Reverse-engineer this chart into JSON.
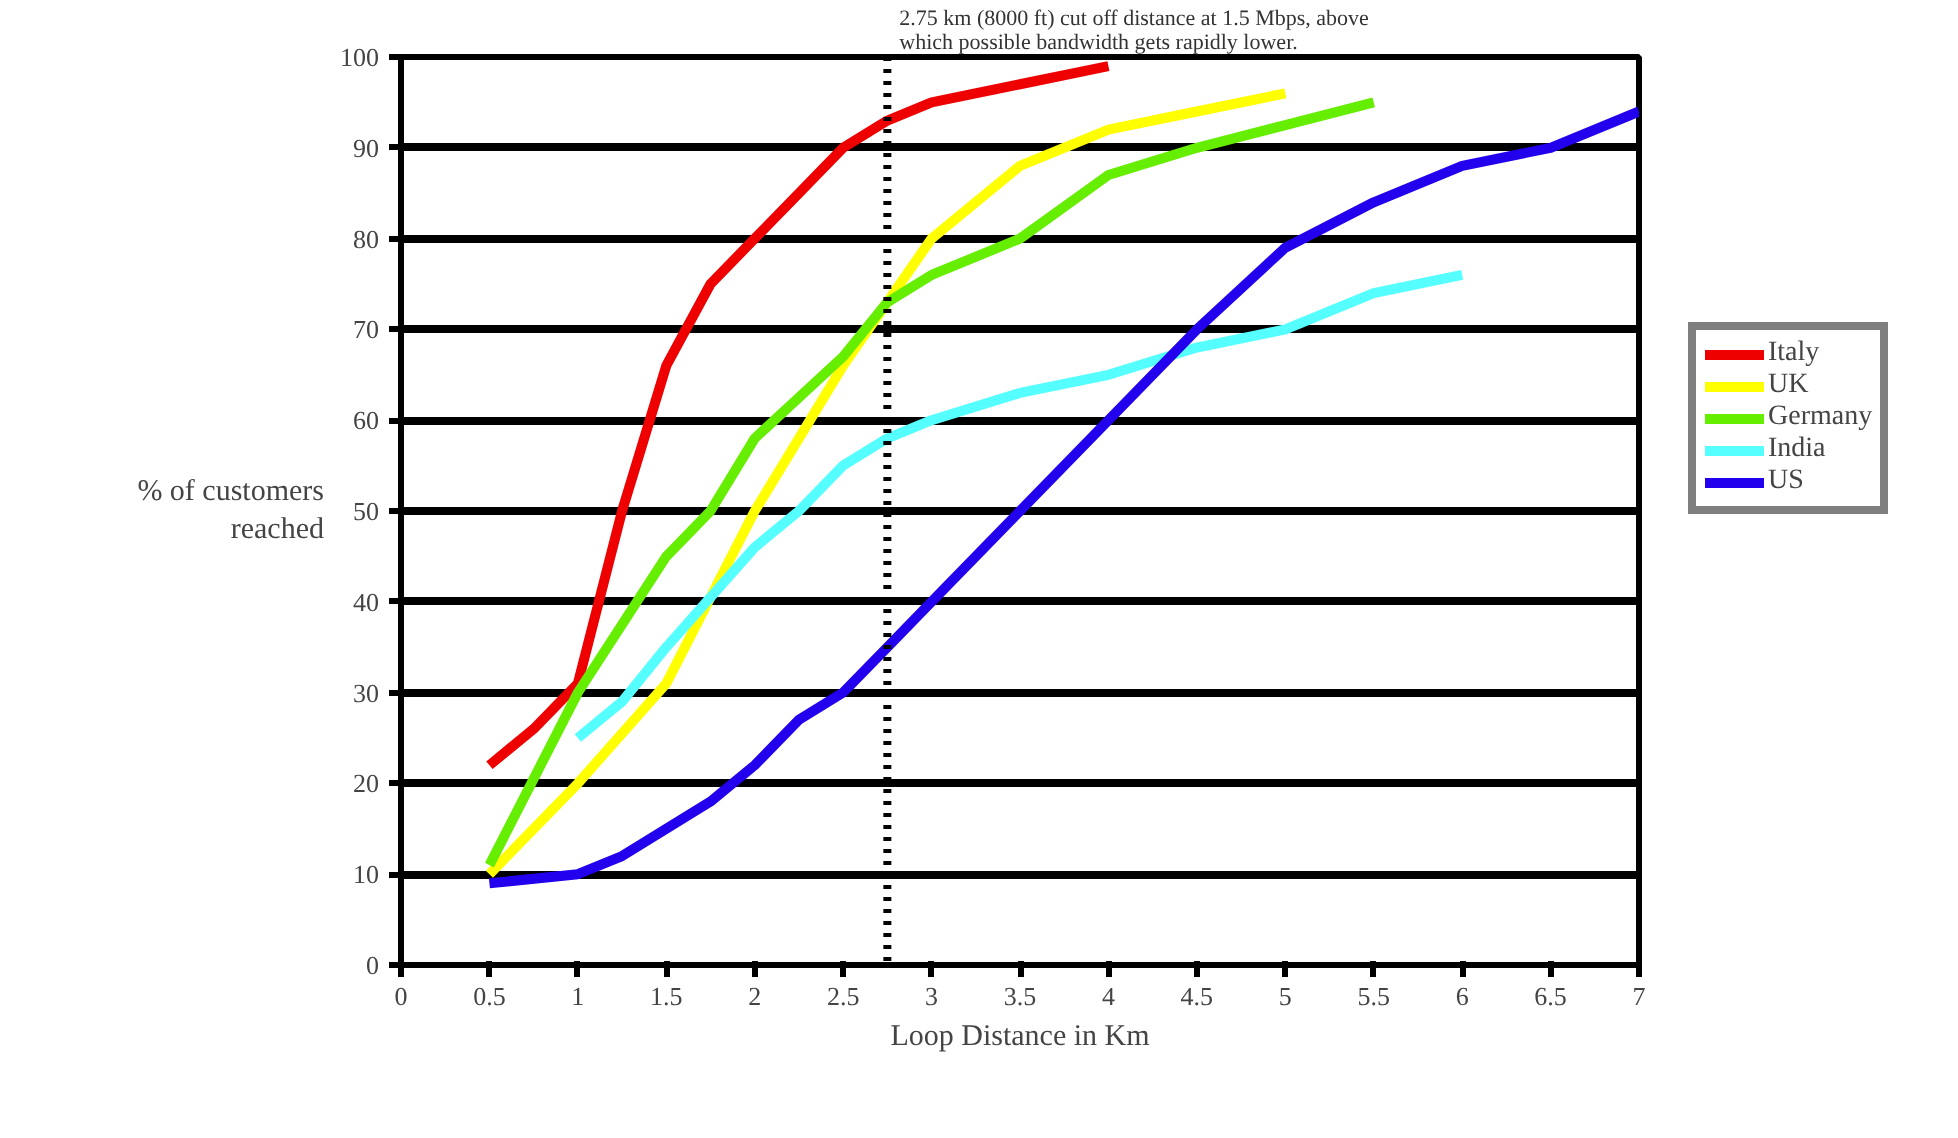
{
  "chart_data": {
    "type": "line",
    "xlabel": "Loop Distance in Km",
    "ylabel": "% of customers reached",
    "xlim": [
      0,
      7
    ],
    "ylim": [
      0,
      100
    ],
    "xticks": [
      0,
      0.5,
      1,
      1.5,
      2,
      2.5,
      3,
      3.5,
      4,
      4.5,
      5,
      5.5,
      6,
      6.5,
      7
    ],
    "yticks": [
      0,
      10,
      20,
      30,
      40,
      50,
      60,
      70,
      80,
      90,
      100
    ],
    "grid": "y",
    "legend": "right",
    "line_style": "solid",
    "marker": "none",
    "ref_lines": [
      {
        "axis": "x",
        "value": 2.75,
        "label": "2.75 km (8000 ft) cut off distance at 1.5 Mbps, above which possible bandwidth gets rapidly lower.",
        "color": "#000000",
        "line_style": "dotted"
      }
    ],
    "series": [
      {
        "name": "Italy",
        "color": "#ee0000",
        "x": [
          0.5,
          0.75,
          1,
          1.25,
          1.5,
          1.75,
          2,
          2.25,
          2.5,
          2.75,
          3,
          3.5,
          4
        ],
        "values": [
          22,
          26,
          31,
          50,
          66,
          75,
          80,
          85,
          90,
          93,
          95,
          97,
          99
        ]
      },
      {
        "name": "UK",
        "color": "#ffff00",
        "x": [
          0.5,
          1,
          1.5,
          2,
          2.5,
          2.75,
          3,
          3.5,
          4,
          4.5,
          5
        ],
        "values": [
          10,
          20,
          31,
          50,
          66,
          73,
          80,
          88,
          92,
          94,
          96
        ]
      },
      {
        "name": "Germany",
        "color": "#66ee00",
        "x": [
          0.5,
          1,
          1.5,
          1.75,
          2,
          2.5,
          2.75,
          3,
          3.5,
          4,
          4.5,
          5,
          5.5
        ],
        "values": [
          11,
          30,
          45,
          50,
          58,
          67,
          73,
          76,
          80,
          87,
          90,
          92.5,
          95
        ]
      },
      {
        "name": "India",
        "color": "#55ffff",
        "x": [
          1,
          1.25,
          1.5,
          2,
          2.25,
          2.5,
          2.75,
          3,
          3.5,
          4,
          4.5,
          5,
          5.5,
          6
        ],
        "values": [
          25,
          29,
          35,
          46,
          50,
          55,
          58,
          60,
          63,
          65,
          68,
          70,
          74,
          76
        ]
      },
      {
        "name": "US",
        "color": "#2200ee",
        "x": [
          0.5,
          1,
          1.25,
          1.5,
          1.75,
          2,
          2.25,
          2.5,
          2.75,
          3,
          3.5,
          4,
          4.5,
          5,
          5.5,
          6,
          6.5,
          7
        ],
        "values": [
          9,
          10,
          12,
          15,
          18,
          22,
          27,
          30,
          35,
          40,
          50,
          60,
          70,
          79,
          84,
          88,
          90,
          94
        ]
      }
    ]
  }
}
